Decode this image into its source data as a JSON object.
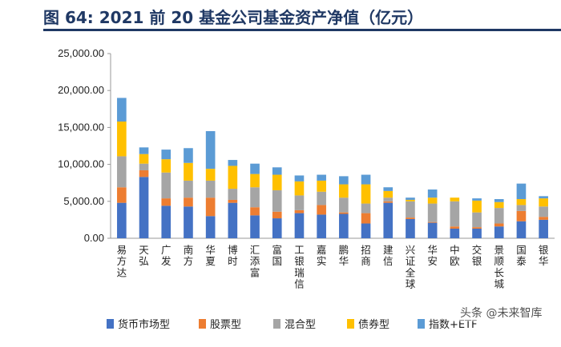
{
  "figure_title": "图 64:    2021 前 20 基金公司基金资产净值（亿元）",
  "watermark": "头条 @未来智库",
  "colors": {
    "title": "#1f3864",
    "series": [
      "#4472c4",
      "#ed7d31",
      "#a5a5a5",
      "#ffc000",
      "#5b9bd5"
    ]
  },
  "chart_data": {
    "type": "bar",
    "stacked": true,
    "title": "2021 前 20 基金公司基金资产净值（亿元）",
    "xlabel": "",
    "ylabel": "",
    "ylim": [
      0,
      25000
    ],
    "yticks": [
      0,
      5000,
      10000,
      15000,
      20000,
      25000
    ],
    "ytick_labels": [
      "0.00",
      "5,000.00",
      "10,000.00",
      "15,000.00",
      "20,000.00",
      "25,000.00"
    ],
    "legend_position": "bottom",
    "categories": [
      "易方达",
      "天弘",
      "广发",
      "南方",
      "华夏",
      "博时",
      "汇添富",
      "富国",
      "工银瑞信",
      "嘉实",
      "鹏华",
      "招商",
      "建信",
      "兴证全球",
      "华安",
      "中欧",
      "交银",
      "景顺长城",
      "国泰",
      "银华"
    ],
    "series": [
      {
        "name": "货币市场型",
        "values": [
          4800,
          8300,
          4400,
          4300,
          3000,
          4800,
          3100,
          2700,
          3400,
          3200,
          3300,
          2000,
          4800,
          2600,
          2100,
          1300,
          1300,
          1600,
          2300,
          2500
        ]
      },
      {
        "name": "股票型",
        "values": [
          2100,
          900,
          1000,
          1200,
          2500,
          400,
          1100,
          900,
          400,
          1300,
          200,
          1400,
          200,
          200,
          100,
          300,
          200,
          400,
          1400,
          400
        ]
      },
      {
        "name": "混合型",
        "values": [
          4200,
          900,
          3500,
          2300,
          2300,
          1500,
          2700,
          2900,
          2000,
          1800,
          2000,
          1300,
          500,
          2200,
          2500,
          3400,
          2000,
          2100,
          800,
          1400
        ]
      },
      {
        "name": "债券型",
        "values": [
          4700,
          1300,
          1800,
          2400,
          1600,
          3100,
          1800,
          2100,
          1900,
          1500,
          1800,
          2600,
          900,
          200,
          800,
          500,
          1600,
          800,
          800,
          1100
        ]
      },
      {
        "name": "指数+ETF",
        "values": [
          3200,
          900,
          1300,
          2000,
          5100,
          800,
          1400,
          1000,
          800,
          800,
          1100,
          1300,
          500,
          300,
          1100,
          0,
          300,
          400,
          2100,
          300
        ]
      }
    ],
    "legend": [
      "货币市场型",
      "股票型",
      "混合型",
      "债券型",
      "指数+ETF"
    ]
  }
}
